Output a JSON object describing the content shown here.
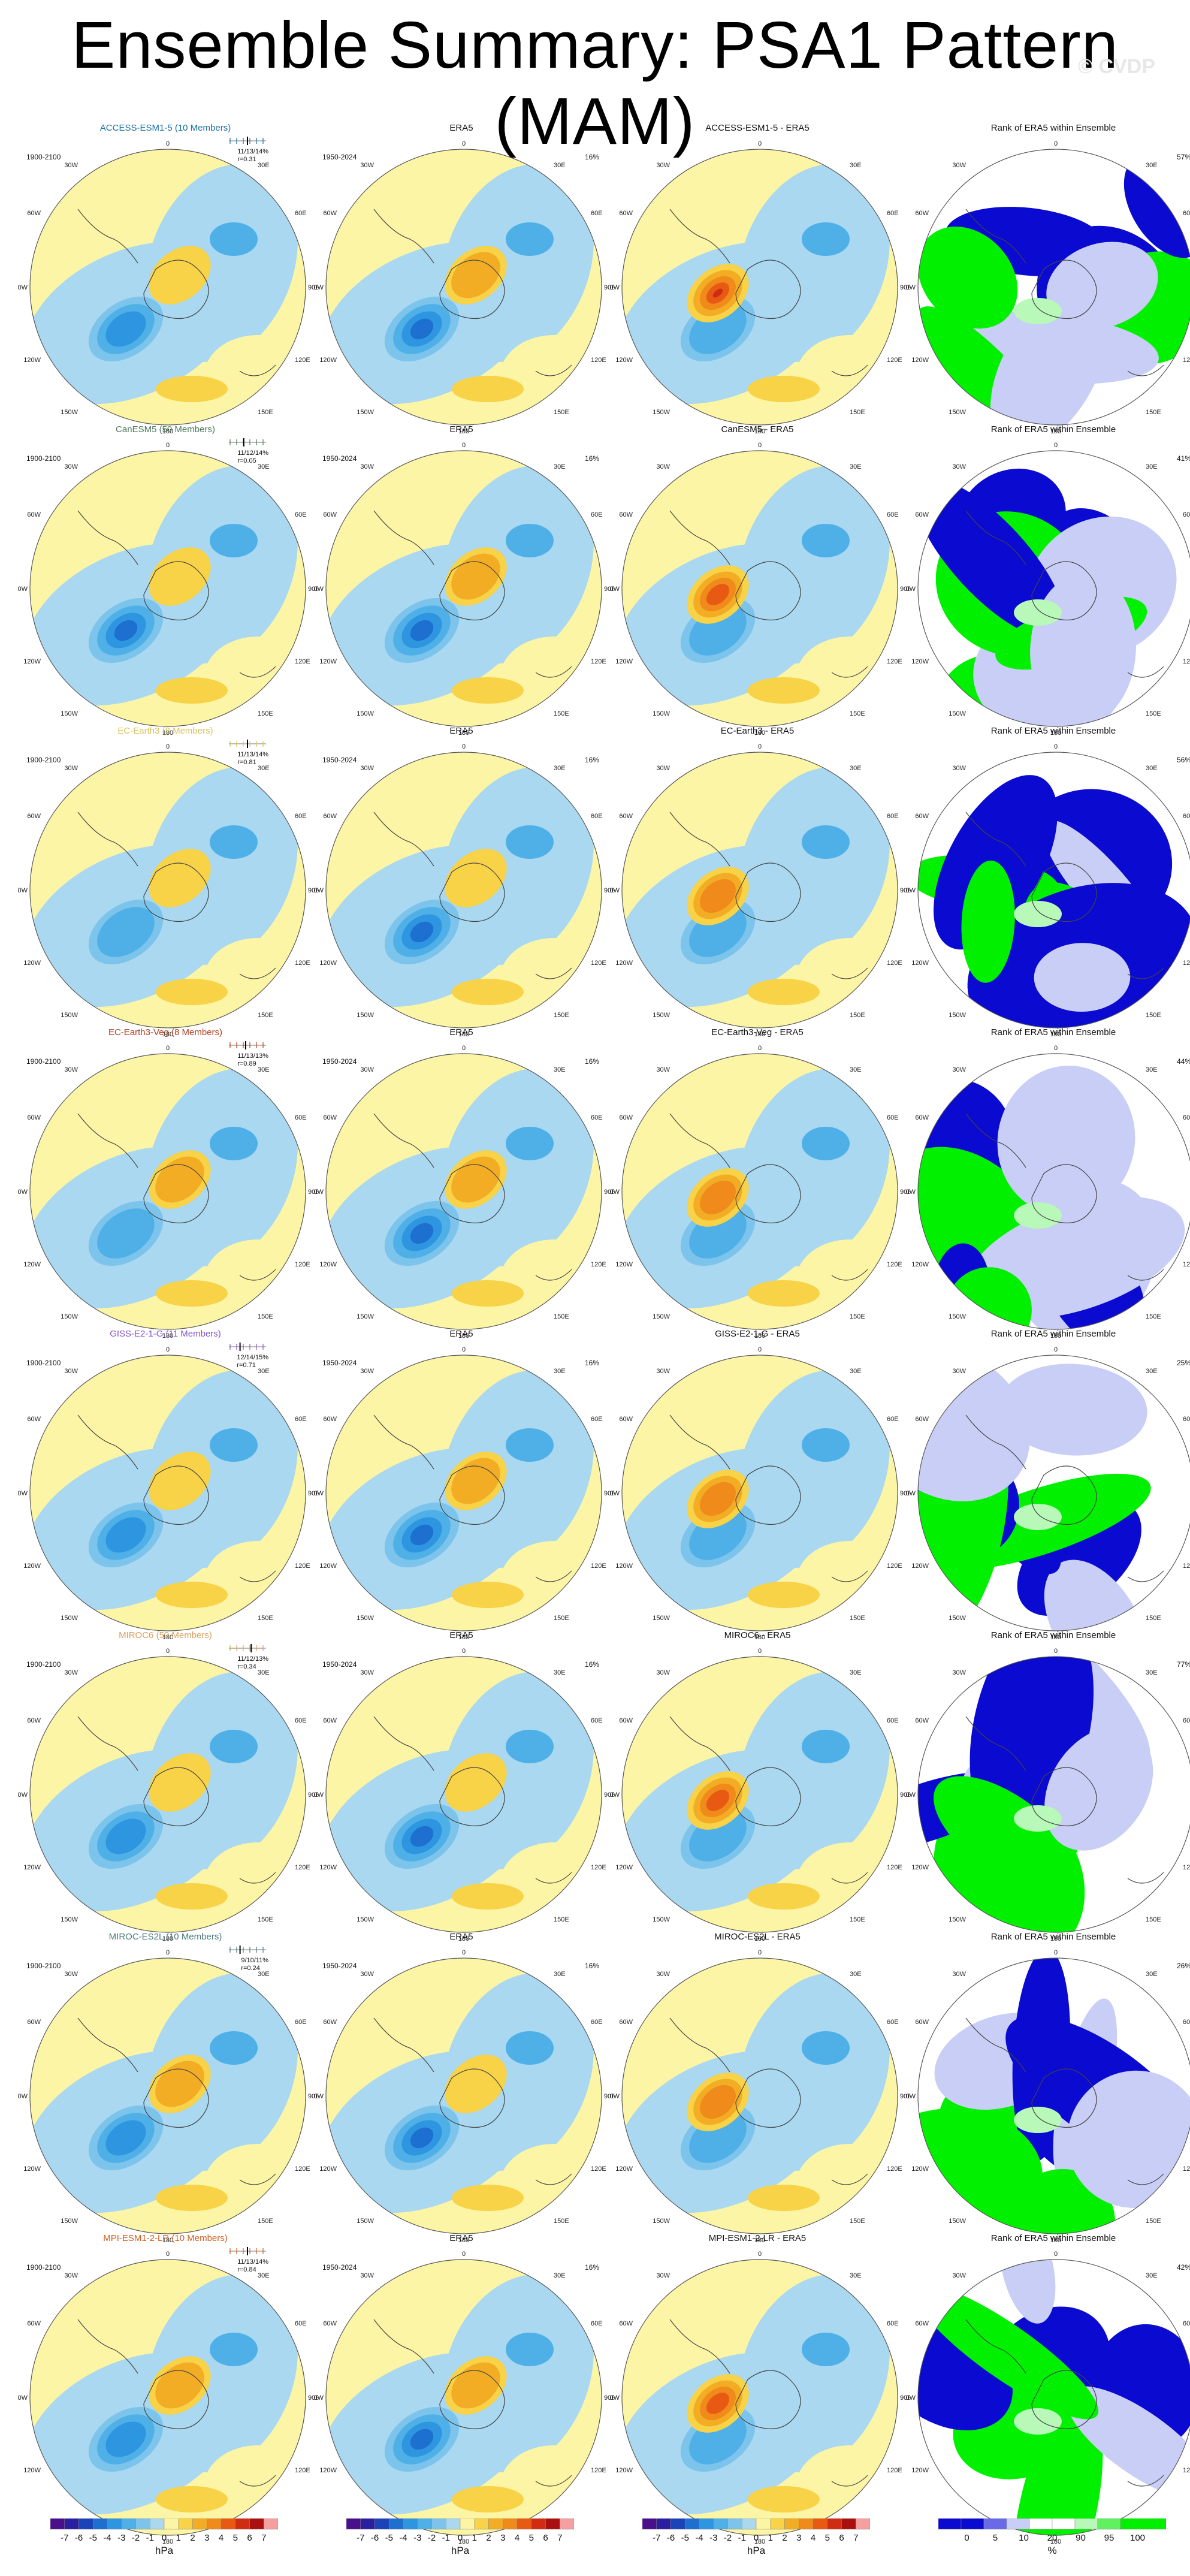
{
  "figure": {
    "title": "Ensemble Summary: PSA1 Pattern (MAM)",
    "watermark": "© CVDP"
  },
  "colors": {
    "ocean_blue": "#a9d8f0",
    "land_yellow": "#fdf5a6",
    "neg_levels": [
      "#a9d8f0",
      "#7cc4ec",
      "#4fb0e8",
      "#2e95e0",
      "#1d6fd0",
      "#1b44b8",
      "#2a1fa0",
      "#4a0f8a"
    ],
    "pos_levels": [
      "#fdf5a6",
      "#f8d247",
      "#f2ad25",
      "#f08a1a",
      "#e85a14",
      "#cf2c12",
      "#aa1010",
      "#f4a0a0"
    ],
    "rank_blue": "#0a0ad0",
    "rank_lightblue": "#c8cef5",
    "rank_green": "#00f000",
    "rank_lightgreen": "#b8f8b8",
    "header_colors": [
      "#1a6fa0",
      "#4d7a5a",
      "#d8c25a",
      "#b04020",
      "#8855cc",
      "#d8a060",
      "#4a7a7a",
      "#d06020"
    ]
  },
  "rows": [
    {
      "model": "ACCESS-ESM1-5 (10 Members)",
      "short": "ACCESS-ESM1-5",
      "period": "1900-2100",
      "stats1": "11/13/14%",
      "stats2": "r=0.31",
      "rank_pct": "57%",
      "ens_tick": 0.5
    },
    {
      "model": "CanESM5 (50 Members)",
      "short": "CanESM5",
      "period": "1900-2100",
      "stats1": "11/12/14%",
      "stats2": "r=0.05",
      "rank_pct": "41%",
      "ens_tick": 0.4
    },
    {
      "model": "EC-Earth3 (8 Members)",
      "short": "EC-Earth3",
      "period": "1900-2100",
      "stats1": "11/13/14%",
      "stats2": "r=0.81",
      "rank_pct": "56%",
      "ens_tick": 0.5
    },
    {
      "model": "EC-Earth3-Veg (8 Members)",
      "short": "EC-Earth3-Veg",
      "period": "1900-2100",
      "stats1": "11/13/13%",
      "stats2": "r=0.89",
      "rank_pct": "44%",
      "ens_tick": 0.45
    },
    {
      "model": "GISS-E2-1-G (11 Members)",
      "short": "GISS-E2-1-G",
      "period": "1900-2100",
      "stats1": "12/14/15%",
      "stats2": "r=0.71",
      "rank_pct": "25%",
      "ens_tick": 0.3
    },
    {
      "model": "MIROC6 (50 Members)",
      "short": "MIROC6",
      "period": "1900-2100",
      "stats1": "11/12/13%",
      "stats2": "r=0.34",
      "rank_pct": "77%",
      "ens_tick": 0.6
    },
    {
      "model": "MIROC-ES2L (10 Members)",
      "short": "MIROC-ES2L",
      "period": "1900-2100",
      "stats1": "9/10/11%",
      "stats2": "r=0.24",
      "rank_pct": "26%",
      "ens_tick": 0.3
    },
    {
      "model": "MPI-ESM1-2-LR (10 Members)",
      "short": "MPI-ESM1-2-LR",
      "period": "1900-2100",
      "stats1": "11/13/14%",
      "stats2": "r=0.84",
      "rank_pct": "42%",
      "ens_tick": 0.5
    }
  ],
  "era5": {
    "title": "ERA5",
    "period": "1950-2024",
    "pct": "16%"
  },
  "diff_suffix": " - ERA5",
  "rank_title": "Rank of ERA5 within Ensemble",
  "map_labels": {
    "top": "0",
    "bottom": "180",
    "left_top": "30W",
    "left_mid1": "60W",
    "left_mid": "90W",
    "left_low": "120W",
    "left_bottom": "150W",
    "right_top": "30E",
    "right_mid1": "60E",
    "right_mid": "90E",
    "right_low": "120E",
    "right_bottom": "150E"
  },
  "colorbars": [
    {
      "unit": "hPa",
      "ticks": [
        "-7",
        "-6",
        "-5",
        "-4",
        "-3",
        "-2",
        "-1",
        "0",
        "1",
        "2",
        "3",
        "4",
        "5",
        "6",
        "7"
      ]
    },
    {
      "unit": "hPa",
      "ticks": [
        "-7",
        "-6",
        "-5",
        "-4",
        "-3",
        "-2",
        "-1",
        "0",
        "1",
        "2",
        "3",
        "4",
        "5",
        "6",
        "7"
      ]
    },
    {
      "unit": "hPa",
      "ticks": [
        "-7",
        "-6",
        "-5",
        "-4",
        "-3",
        "-2",
        "-1",
        "0",
        "1",
        "2",
        "3",
        "4",
        "5",
        "6",
        "7"
      ]
    },
    {
      "unit": "%",
      "ticks": [
        "0",
        "5",
        "10",
        "20",
        "90",
        "95",
        "100"
      ]
    }
  ]
}
